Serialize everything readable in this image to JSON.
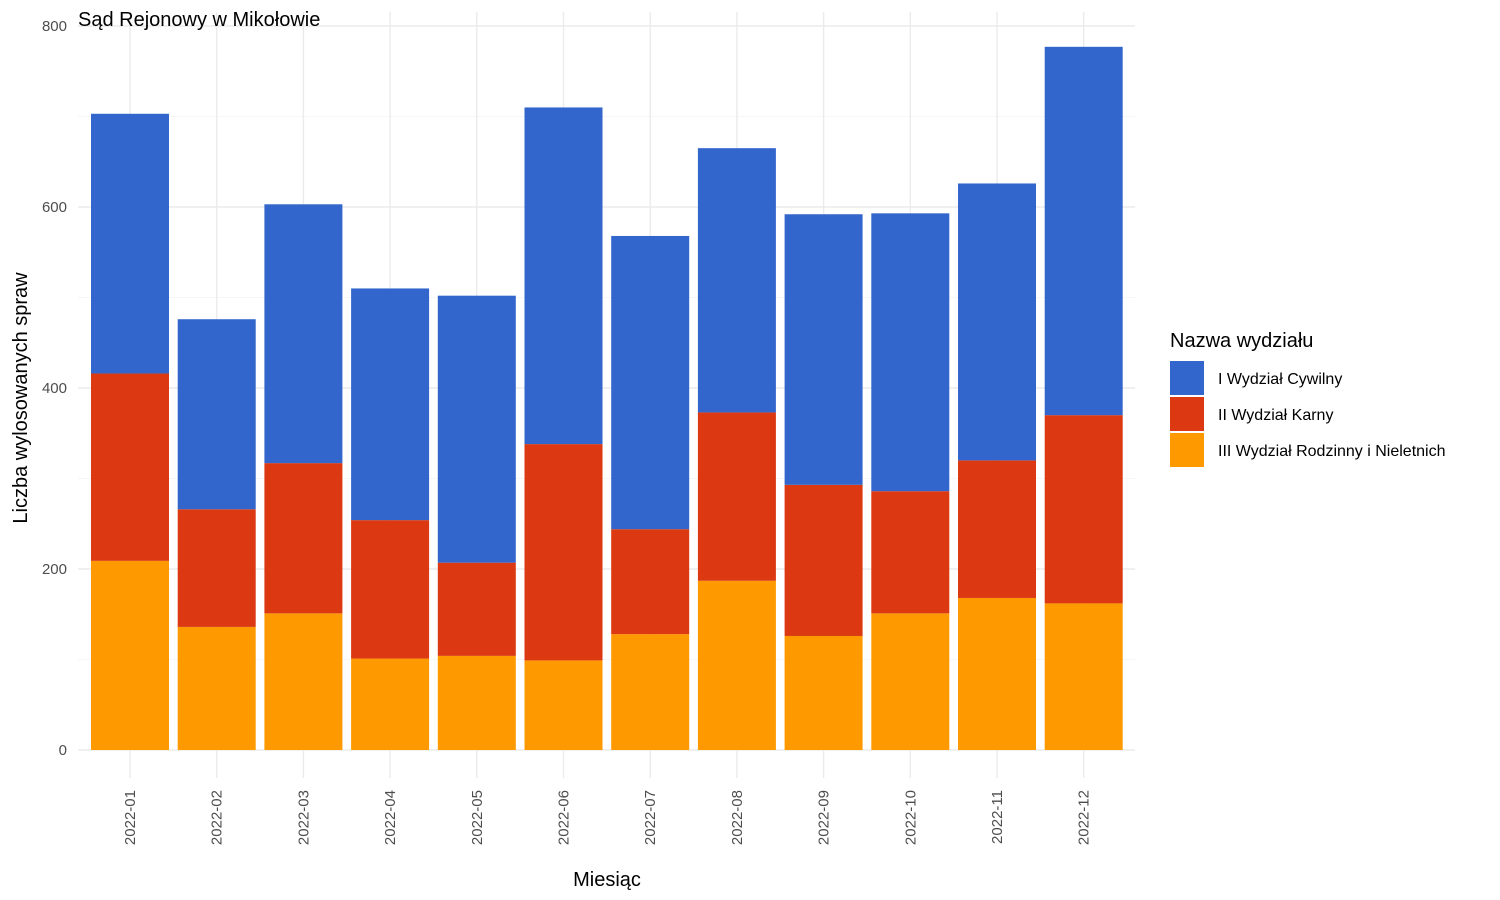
{
  "chart_data": {
    "type": "bar",
    "stacked": true,
    "title": "Sąd Rejonowy w Mikołowie",
    "xlabel": "Miesiąc",
    "ylabel": "Liczba wylosowanych spraw",
    "ylim": [
      0,
      800
    ],
    "yticks": [
      0,
      200,
      400,
      600,
      800
    ],
    "grid": true,
    "legend_title": "Nazwa wydziału",
    "legend_position": "right",
    "categories": [
      "2022-01",
      "2022-02",
      "2022-03",
      "2022-04",
      "2022-05",
      "2022-06",
      "2022-07",
      "2022-08",
      "2022-09",
      "2022-10",
      "2022-11",
      "2022-12"
    ],
    "series": [
      {
        "name": "III Wydział Rodzinny i Nieletnich",
        "color": "#ff9900",
        "values": [
          209,
          136,
          151,
          101,
          104,
          99,
          128,
          187,
          126,
          151,
          168,
          162
        ]
      },
      {
        "name": "II Wydział Karny",
        "color": "#dc3912",
        "values": [
          207,
          130,
          166,
          153,
          103,
          239,
          116,
          186,
          167,
          135,
          152,
          208
        ]
      },
      {
        "name": "I Wydział Cywilny",
        "color": "#3366cc",
        "values": [
          287,
          210,
          286,
          256,
          295,
          372,
          324,
          292,
          299,
          307,
          306,
          407
        ]
      }
    ],
    "legend_order": [
      "I Wydział Cywilny",
      "II Wydział Karny",
      "III Wydział Rodzinny i Nieletnich"
    ]
  }
}
